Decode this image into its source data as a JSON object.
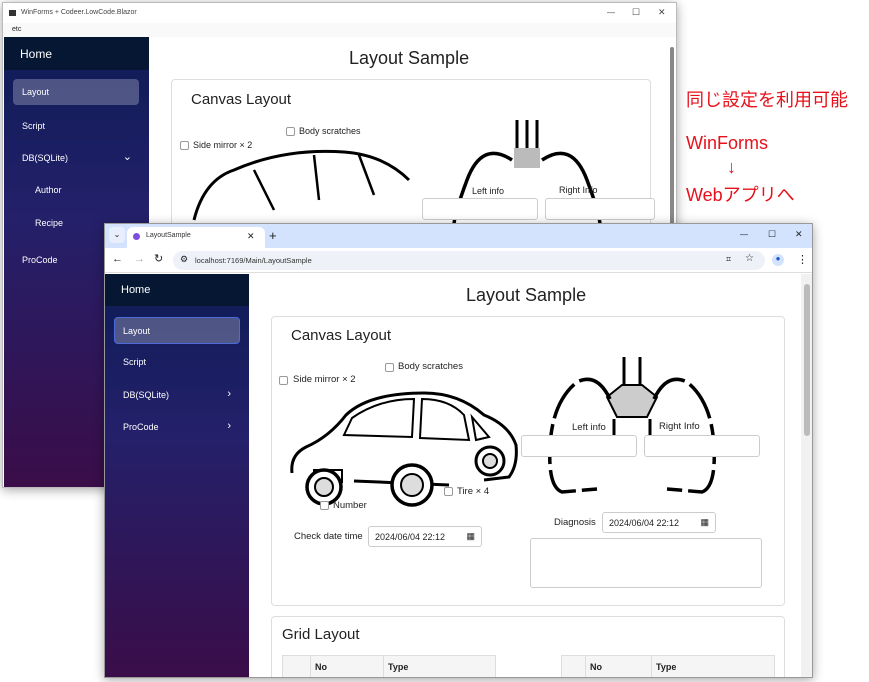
{
  "back_window": {
    "title": "WinForms + Codeer.LowCode.Blazor",
    "menu": "etc",
    "controls": {
      "minimize": "—",
      "maximize": "☐",
      "close": "✕"
    },
    "sidebar": {
      "home": "Home",
      "items": [
        {
          "label": "Layout",
          "active": true
        },
        {
          "label": "Script"
        },
        {
          "label": "DB(SQLite)",
          "chevron": "down"
        },
        {
          "label": "Author"
        },
        {
          "label": "Recipe"
        },
        {
          "label": "ProCode"
        }
      ]
    },
    "page_title": "Layout Sample",
    "canvas_title": "Canvas Layout",
    "body_scratches": "Body scratches",
    "side_mirror": "Side mirror × 2",
    "left_info": "Left info",
    "right_info": "Right Info"
  },
  "annotation": {
    "line1": "同じ設定を利用可能",
    "line2": "WinForms",
    "arrow": "↓",
    "line3": "Webアプリへ",
    "color": "#e8101a"
  },
  "browser": {
    "tab_title": "LayoutSample",
    "new_tab": "+",
    "url": "localhost:7169/Main/LayoutSample",
    "controls": {
      "minimize": "—",
      "maximize": "☐",
      "close": "✕"
    },
    "sidebar": {
      "home": "Home",
      "items": [
        {
          "label": "Layout",
          "active": true
        },
        {
          "label": "Script"
        },
        {
          "label": "DB(SQLite)",
          "chevron": "right"
        },
        {
          "label": "ProCode",
          "chevron": "right"
        }
      ]
    },
    "page_title": "Layout Sample",
    "canvas": {
      "title": "Canvas Layout",
      "body_scratches": "Body scratches",
      "side_mirror": "Side mirror × 2",
      "number": "Number",
      "tire": "Tire × 4",
      "check_date_label": "Check date time",
      "check_date_value": "2024/06/04 22:12",
      "left_info": "Left info",
      "right_info": "Right Info",
      "diagnosis_label": "Diagnosis",
      "diagnosis_value": "2024/06/04 22:12"
    },
    "grid": {
      "title": "Grid Layout",
      "columns": [
        "",
        "No",
        "Type"
      ]
    }
  }
}
